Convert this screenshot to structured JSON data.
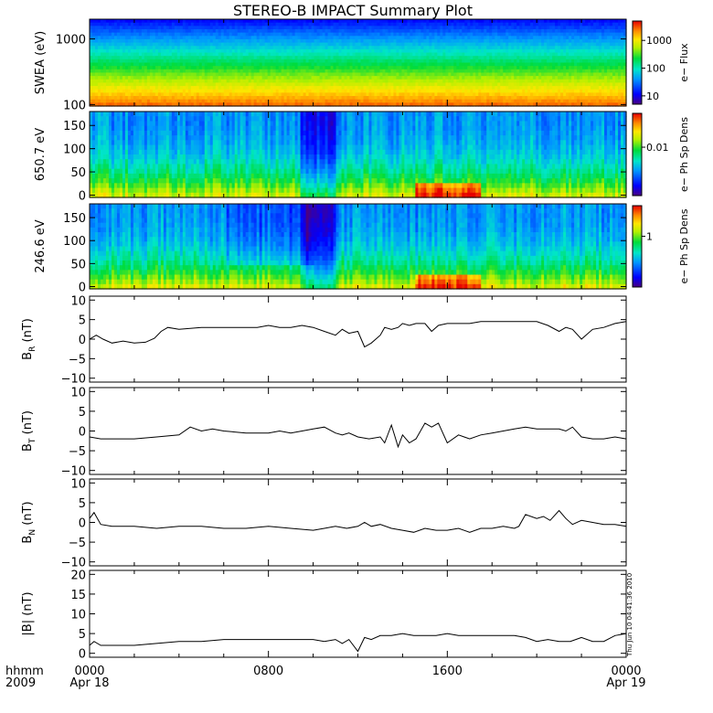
{
  "title": "STEREO-B IMPACT Summary Plot",
  "time_axis": {
    "corner_top": "hhmm",
    "corner_bottom": "2009",
    "ticks": [
      {
        "hour": 0,
        "label": "0000",
        "sublabel": "Apr 18"
      },
      {
        "hour": 8,
        "label": "0800",
        "sublabel": ""
      },
      {
        "hour": 16,
        "label": "1600",
        "sublabel": ""
      },
      {
        "hour": 24,
        "label": "0000",
        "sublabel": "Apr 19"
      }
    ],
    "range_hours": [
      0,
      24
    ]
  },
  "timestamp": "Thu Jun 10 04:41:36 2010",
  "colors": {
    "trace": "#000000",
    "frame": "#000000"
  },
  "chart_data": [
    {
      "id": "swea",
      "type": "heatmap",
      "ylabel": "SWEA (eV)",
      "yscale": "log",
      "yrange": [
        95,
        2000
      ],
      "ticks": [
        {
          "v": 100,
          "label": "100"
        },
        {
          "v": 1000,
          "label": "1000"
        }
      ],
      "colorbar": {
        "label": "e− Flux",
        "scale": "log",
        "range": [
          5,
          5000
        ],
        "ticks": [
          {
            "v": 10,
            "label": "10"
          },
          {
            "v": 100,
            "label": "100"
          },
          {
            "v": 1000,
            "label": "1000"
          }
        ]
      },
      "description": "Electron flux decreasing with energy: red/orange near 100 eV, yellow-green ~300 eV, blue above 1000 eV"
    },
    {
      "id": "pad650",
      "type": "heatmap",
      "ylabel": "650.7 eV",
      "yrange": [
        -5,
        180
      ],
      "ticks": [
        {
          "v": 0,
          "label": "0"
        },
        {
          "v": 50,
          "label": "50"
        },
        {
          "v": 100,
          "label": "100"
        },
        {
          "v": 150,
          "label": "150"
        }
      ],
      "colorbar": {
        "label": "e− Ph Sp Dens",
        "scale": "log",
        "range": [
          0.001,
          0.05
        ],
        "ticks": [
          {
            "v": 0.01,
            "label": "0.01"
          }
        ]
      }
    },
    {
      "id": "pad246",
      "type": "heatmap",
      "ylabel": "246.6 eV",
      "yrange": [
        -5,
        180
      ],
      "ticks": [
        {
          "v": 0,
          "label": "0"
        },
        {
          "v": 50,
          "label": "50"
        },
        {
          "v": 100,
          "label": "100"
        },
        {
          "v": 150,
          "label": "150"
        }
      ],
      "colorbar": {
        "label": "e− Ph Sp Dens",
        "scale": "log",
        "range": [
          0.1,
          4
        ],
        "ticks": [
          {
            "v": 1,
            "label": "1"
          }
        ]
      }
    },
    {
      "id": "br",
      "type": "line",
      "ylabel_main": "B",
      "ylabel_sub": "R",
      "ylabel_unit": " (nT)",
      "yrange": [
        -11,
        11
      ],
      "ticks": [
        {
          "v": -10,
          "label": "−10"
        },
        {
          "v": -5,
          "label": "−5"
        },
        {
          "v": 0,
          "label": "0"
        },
        {
          "v": 5,
          "label": "5"
        },
        {
          "v": 10,
          "label": "10"
        }
      ],
      "x": [
        0,
        0.3,
        0.6,
        1,
        1.5,
        2,
        2.5,
        2.9,
        3.2,
        3.5,
        4,
        5,
        6,
        7,
        7.5,
        8,
        8.5,
        9,
        9.5,
        10,
        10.5,
        11,
        11.3,
        11.6,
        12,
        12.3,
        12.6,
        13,
        13.2,
        13.5,
        13.8,
        14,
        14.3,
        14.6,
        15,
        15.3,
        15.6,
        16,
        16.5,
        17,
        17.5,
        18,
        18.5,
        19,
        19.5,
        20,
        20.5,
        21,
        21.3,
        21.6,
        22,
        22.5,
        23,
        23.5,
        24
      ],
      "y": [
        0,
        1,
        0,
        -1,
        -0.5,
        -1,
        -0.8,
        0.2,
        2,
        3,
        2.5,
        3,
        3,
        3,
        3,
        3.5,
        3,
        3,
        3.5,
        3,
        2,
        1,
        2.5,
        1.5,
        2,
        -2,
        -1,
        1,
        3,
        2.5,
        3,
        4,
        3.5,
        4,
        4,
        2,
        3.5,
        4,
        4,
        4,
        4.5,
        4.5,
        4.5,
        4.5,
        4.5,
        4.5,
        3.5,
        2,
        3,
        2.5,
        0,
        2.5,
        3,
        4,
        4.5
      ]
    },
    {
      "id": "bt",
      "type": "line",
      "ylabel_main": "B",
      "ylabel_sub": "T",
      "ylabel_unit": " (nT)",
      "yrange": [
        -11,
        11
      ],
      "ticks": [
        {
          "v": -10,
          "label": "−10"
        },
        {
          "v": -5,
          "label": "−5"
        },
        {
          "v": 0,
          "label": "0"
        },
        {
          "v": 5,
          "label": "5"
        },
        {
          "v": 10,
          "label": "10"
        }
      ],
      "x": [
        0,
        0.5,
        1,
        2,
        3,
        4,
        4.5,
        5,
        5.5,
        6,
        7,
        8,
        8.5,
        9,
        9.5,
        10,
        10.5,
        11,
        11.3,
        11.6,
        12,
        12.5,
        13,
        13.2,
        13.5,
        13.8,
        14,
        14.3,
        14.6,
        15,
        15.3,
        15.6,
        16,
        16.5,
        17,
        17.5,
        18,
        18.5,
        19,
        19.5,
        20,
        20.5,
        21,
        21.3,
        21.6,
        22,
        22.5,
        23,
        23.5,
        24
      ],
      "y": [
        -1.5,
        -2,
        -2,
        -2,
        -1.5,
        -1,
        1,
        0,
        0.5,
        0,
        -0.5,
        -0.5,
        0,
        -0.5,
        0,
        0.5,
        1,
        -0.5,
        -1,
        -0.5,
        -1.5,
        -2,
        -1.5,
        -3,
        1.5,
        -4,
        -1,
        -3,
        -2,
        2,
        1,
        2,
        -3,
        -1,
        -2,
        -1,
        -0.5,
        0,
        0.5,
        1,
        0.5,
        0.5,
        0.5,
        0,
        1,
        -1.5,
        -2,
        -2,
        -1.5,
        -2
      ]
    },
    {
      "id": "bn",
      "type": "line",
      "ylabel_main": "B",
      "ylabel_sub": "N",
      "ylabel_unit": " (nT)",
      "yrange": [
        -11,
        11
      ],
      "ticks": [
        {
          "v": -10,
          "label": "−10"
        },
        {
          "v": -5,
          "label": "−5"
        },
        {
          "v": 0,
          "label": "0"
        },
        {
          "v": 5,
          "label": "5"
        },
        {
          "v": 10,
          "label": "10"
        }
      ],
      "x": [
        0,
        0.2,
        0.5,
        1,
        2,
        3,
        4,
        5,
        6,
        7,
        8,
        9,
        10,
        10.5,
        11,
        11.5,
        12,
        12.3,
        12.6,
        13,
        13.5,
        14,
        14.5,
        15,
        15.5,
        16,
        16.5,
        17,
        17.5,
        18,
        18.5,
        19,
        19.2,
        19.5,
        20,
        20.3,
        20.6,
        21,
        21.3,
        21.6,
        22,
        22.5,
        23,
        23.5,
        24
      ],
      "y": [
        1,
        2.5,
        -0.5,
        -1,
        -1,
        -1.5,
        -1,
        -1,
        -1.5,
        -1.5,
        -1,
        -1.5,
        -2,
        -1.5,
        -1,
        -1.5,
        -1,
        0,
        -1,
        -0.5,
        -1.5,
        -2,
        -2.5,
        -1.5,
        -2,
        -2,
        -1.5,
        -2.5,
        -1.5,
        -1.5,
        -1,
        -1.5,
        -1,
        2,
        1,
        1.5,
        0.5,
        3,
        1,
        -0.5,
        0.5,
        0,
        -0.5,
        -0.5,
        -1
      ]
    },
    {
      "id": "bmag",
      "type": "line",
      "ylabel_main": "|B|",
      "ylabel_sub": "",
      "ylabel_unit": " (nT)",
      "yrange": [
        -1,
        21
      ],
      "ticks": [
        {
          "v": 0,
          "label": "0"
        },
        {
          "v": 5,
          "label": "5"
        },
        {
          "v": 10,
          "label": "10"
        },
        {
          "v": 15,
          "label": "15"
        },
        {
          "v": 20,
          "label": "20"
        }
      ],
      "x": [
        0,
        0.2,
        0.5,
        1,
        2,
        3,
        4,
        5,
        6,
        7,
        8,
        9,
        10,
        10.5,
        11,
        11.3,
        11.6,
        12,
        12.3,
        12.6,
        13,
        13.5,
        14,
        14.5,
        15,
        15.5,
        16,
        16.5,
        17,
        17.5,
        18,
        18.5,
        19,
        19.5,
        20,
        20.5,
        21,
        21.5,
        22,
        22.5,
        23,
        23.5,
        24
      ],
      "y": [
        2,
        3,
        2,
        2,
        2,
        2.5,
        3,
        3,
        3.5,
        3.5,
        3.5,
        3.5,
        3.5,
        3,
        3.5,
        2.5,
        3.5,
        0.5,
        4,
        3.5,
        4.5,
        4.5,
        5,
        4.5,
        4.5,
        4.5,
        5,
        4.5,
        4.5,
        4.5,
        4.5,
        4.5,
        4.5,
        4,
        3,
        3.5,
        3,
        3,
        4,
        3,
        3,
        4.5,
        5
      ]
    }
  ]
}
